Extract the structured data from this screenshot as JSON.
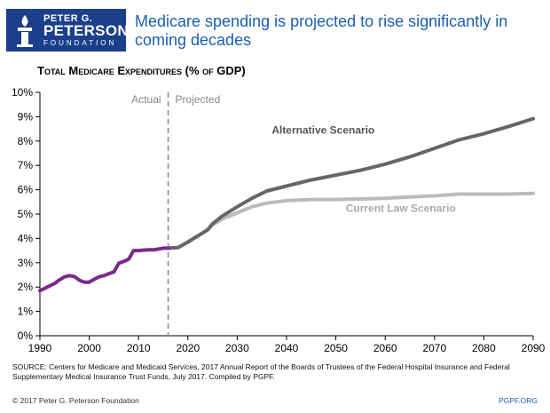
{
  "logo": {
    "line1": "PETER G.",
    "line2": "PETERSON",
    "line3": "FOUNDATION",
    "bg_color": "#1b3f8b"
  },
  "headline": "Medicare spending is projected to rise significantly in coming decades",
  "chart_data": {
    "type": "line",
    "title": "Total Medicare Expenditures (% of GDP)",
    "xlabel": "",
    "ylabel": "",
    "xlim": [
      1990,
      2090
    ],
    "ylim": [
      0,
      10
    ],
    "x_ticks": [
      1990,
      2000,
      2010,
      2020,
      2030,
      2040,
      2050,
      2060,
      2070,
      2080,
      2090
    ],
    "y_ticks": [
      "0%",
      "1%",
      "2%",
      "3%",
      "4%",
      "5%",
      "6%",
      "7%",
      "8%",
      "9%",
      "10%"
    ],
    "divider": {
      "x": 2016,
      "left_label": "Actual",
      "right_label": "Projected"
    },
    "series": [
      {
        "name": "Actual",
        "color": "#7b2a8c",
        "points": [
          [
            1990,
            1.85
          ],
          [
            1991,
            1.95
          ],
          [
            1992,
            2.05
          ],
          [
            1993,
            2.15
          ],
          [
            1994,
            2.3
          ],
          [
            1995,
            2.42
          ],
          [
            1996,
            2.47
          ],
          [
            1997,
            2.43
          ],
          [
            1998,
            2.28
          ],
          [
            1999,
            2.2
          ],
          [
            2000,
            2.2
          ],
          [
            2001,
            2.32
          ],
          [
            2002,
            2.42
          ],
          [
            2003,
            2.47
          ],
          [
            2004,
            2.55
          ],
          [
            2005,
            2.62
          ],
          [
            2006,
            2.98
          ],
          [
            2007,
            3.05
          ],
          [
            2008,
            3.15
          ],
          [
            2009,
            3.5
          ],
          [
            2010,
            3.5
          ],
          [
            2011,
            3.52
          ],
          [
            2012,
            3.53
          ],
          [
            2013,
            3.53
          ],
          [
            2014,
            3.56
          ],
          [
            2015,
            3.6
          ],
          [
            2016,
            3.6
          ]
        ]
      },
      {
        "name": "Current Law Scenario",
        "color": "#bbbbbb",
        "points": [
          [
            2016,
            3.6
          ],
          [
            2018,
            3.62
          ],
          [
            2020,
            3.85
          ],
          [
            2022,
            4.1
          ],
          [
            2024,
            4.35
          ],
          [
            2025,
            4.55
          ],
          [
            2027,
            4.8
          ],
          [
            2030,
            5.05
          ],
          [
            2033,
            5.3
          ],
          [
            2036,
            5.45
          ],
          [
            2040,
            5.55
          ],
          [
            2045,
            5.6
          ],
          [
            2050,
            5.6
          ],
          [
            2055,
            5.62
          ],
          [
            2060,
            5.65
          ],
          [
            2065,
            5.7
          ],
          [
            2070,
            5.75
          ],
          [
            2075,
            5.82
          ],
          [
            2080,
            5.82
          ],
          [
            2085,
            5.82
          ],
          [
            2090,
            5.85
          ]
        ]
      },
      {
        "name": "Alternative Scenario",
        "color": "#666666",
        "points": [
          [
            2016,
            3.6
          ],
          [
            2018,
            3.62
          ],
          [
            2020,
            3.85
          ],
          [
            2022,
            4.1
          ],
          [
            2024,
            4.35
          ],
          [
            2025,
            4.6
          ],
          [
            2027,
            4.92
          ],
          [
            2030,
            5.3
          ],
          [
            2033,
            5.65
          ],
          [
            2036,
            5.95
          ],
          [
            2040,
            6.15
          ],
          [
            2045,
            6.4
          ],
          [
            2050,
            6.6
          ],
          [
            2055,
            6.8
          ],
          [
            2060,
            7.05
          ],
          [
            2065,
            7.35
          ],
          [
            2070,
            7.7
          ],
          [
            2075,
            8.05
          ],
          [
            2080,
            8.3
          ],
          [
            2085,
            8.6
          ],
          [
            2090,
            8.92
          ]
        ]
      }
    ],
    "annotations": [
      {
        "text": "Alternative Scenario",
        "x": 2037,
        "y": 8.3
      },
      {
        "text": "Current Law Scenario",
        "x": 2052,
        "y": 5.1
      }
    ]
  },
  "source_text": "SOURCE: Centers for Medicare and Medicaid Services, 2017 Annual Report of the Boards of Trustees of the Federal Hospital Insurance and Federal Supplementary Medical Insurance Trust Funds, July 2017. Compiled by PGPF.",
  "footer": {
    "copyright": "© 2017 Peter G. Peterson Foundation",
    "site": "PGPF.ORG"
  }
}
